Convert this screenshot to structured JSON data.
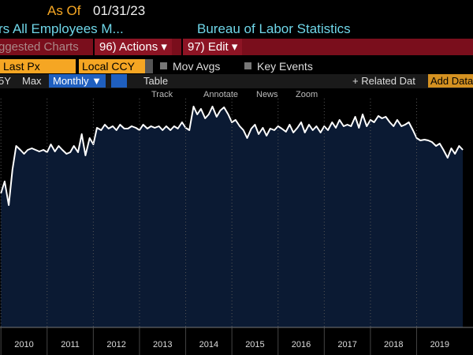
{
  "header": {
    "as_of_label": "As Of",
    "as_of_date": "01/31/23",
    "title": "rs All Employees M...",
    "source": "Bureau of Labor Statistics"
  },
  "menu": {
    "suggested": "ggested Charts",
    "actions": "96) Actions ▾",
    "edit": "97) Edit ▾"
  },
  "options": {
    "field": "Last Px",
    "currency": "Local CCY",
    "mov_avgs": "Mov Avgs",
    "key_events": "Key Events"
  },
  "range_bar": {
    "five_year": "5Y",
    "max": "Max",
    "frequency": "Monthly ▼",
    "table": "Table",
    "related": "+ Related Dat",
    "add_data": "Add Data"
  },
  "tools": {
    "track": "Track",
    "annotate": "Annotate",
    "news": "News",
    "zoom": "Zoom"
  },
  "chart_data": {
    "type": "area",
    "grid": true,
    "x": [
      2010.0,
      2010.08,
      2010.17,
      2010.25,
      2010.33,
      2010.42,
      2010.5,
      2010.58,
      2010.67,
      2010.75,
      2010.83,
      2010.92,
      2011.0,
      2011.08,
      2011.17,
      2011.25,
      2011.33,
      2011.42,
      2011.5,
      2011.58,
      2011.67,
      2011.75,
      2011.83,
      2011.92,
      2012.0,
      2012.08,
      2012.17,
      2012.25,
      2012.33,
      2012.42,
      2012.5,
      2012.58,
      2012.67,
      2012.75,
      2012.83,
      2012.92,
      2013.0,
      2013.08,
      2013.17,
      2013.25,
      2013.33,
      2013.42,
      2013.5,
      2013.58,
      2013.67,
      2013.75,
      2013.83,
      2013.92,
      2014.0,
      2014.08,
      2014.17,
      2014.25,
      2014.33,
      2014.42,
      2014.5,
      2014.58,
      2014.67,
      2014.75,
      2014.83,
      2014.92,
      2015.0,
      2015.08,
      2015.17,
      2015.25,
      2015.33,
      2015.42,
      2015.5,
      2015.58,
      2015.67,
      2015.75,
      2015.83,
      2015.92,
      2016.0,
      2016.08,
      2016.17,
      2016.25,
      2016.33,
      2016.42,
      2016.5,
      2016.58,
      2016.67,
      2016.75,
      2016.83,
      2016.92,
      2017.0,
      2017.08,
      2017.17,
      2017.25,
      2017.33,
      2017.42,
      2017.5,
      2017.58,
      2017.67,
      2017.75,
      2017.83,
      2017.92,
      2018.0,
      2018.08,
      2018.17,
      2018.25,
      2018.33,
      2018.42,
      2018.5,
      2018.58,
      2018.67,
      2018.75,
      2018.83,
      2018.92,
      2019.0,
      2019.08,
      2019.17,
      2019.25,
      2019.33,
      2019.42,
      2019.5,
      2019.58,
      2019.67,
      2019.75,
      2019.83,
      2019.92,
      2020.0
    ],
    "series": [
      {
        "color": "#ffffff",
        "fill": "#0b1a33",
        "values": [
          170,
          185,
          155,
          200,
          230,
          225,
          220,
          225,
          227,
          225,
          223,
          225,
          222,
          232,
          223,
          230,
          225,
          220,
          222,
          230,
          222,
          245,
          218,
          240,
          232,
          253,
          250,
          257,
          252,
          255,
          250,
          257,
          252,
          252,
          255,
          253,
          250,
          257,
          252,
          255,
          253,
          255,
          250,
          255,
          250,
          255,
          252,
          260,
          253,
          250,
          280,
          270,
          277,
          265,
          270,
          280,
          267,
          275,
          279,
          270,
          260,
          263,
          255,
          250,
          240,
          252,
          257,
          245,
          253,
          243,
          252,
          250,
          255,
          252,
          248,
          257,
          247,
          253,
          260,
          247,
          257,
          250,
          255,
          247,
          255,
          250,
          260,
          253,
          263,
          255,
          257,
          255,
          267,
          253,
          270,
          255,
          263,
          260,
          268,
          265,
          267,
          260,
          255,
          263,
          255,
          257,
          260,
          250,
          240,
          237,
          238,
          237,
          235,
          230,
          233,
          225,
          215,
          227,
          220,
          230,
          225
        ]
      }
    ],
    "xlim": [
      2009.98,
      2020.22
    ],
    "xticks": [
      2010,
      2011,
      2012,
      2013,
      2014,
      2015,
      2016,
      2017,
      2018,
      2019
    ],
    "ylim": [
      0,
      290
    ]
  }
}
